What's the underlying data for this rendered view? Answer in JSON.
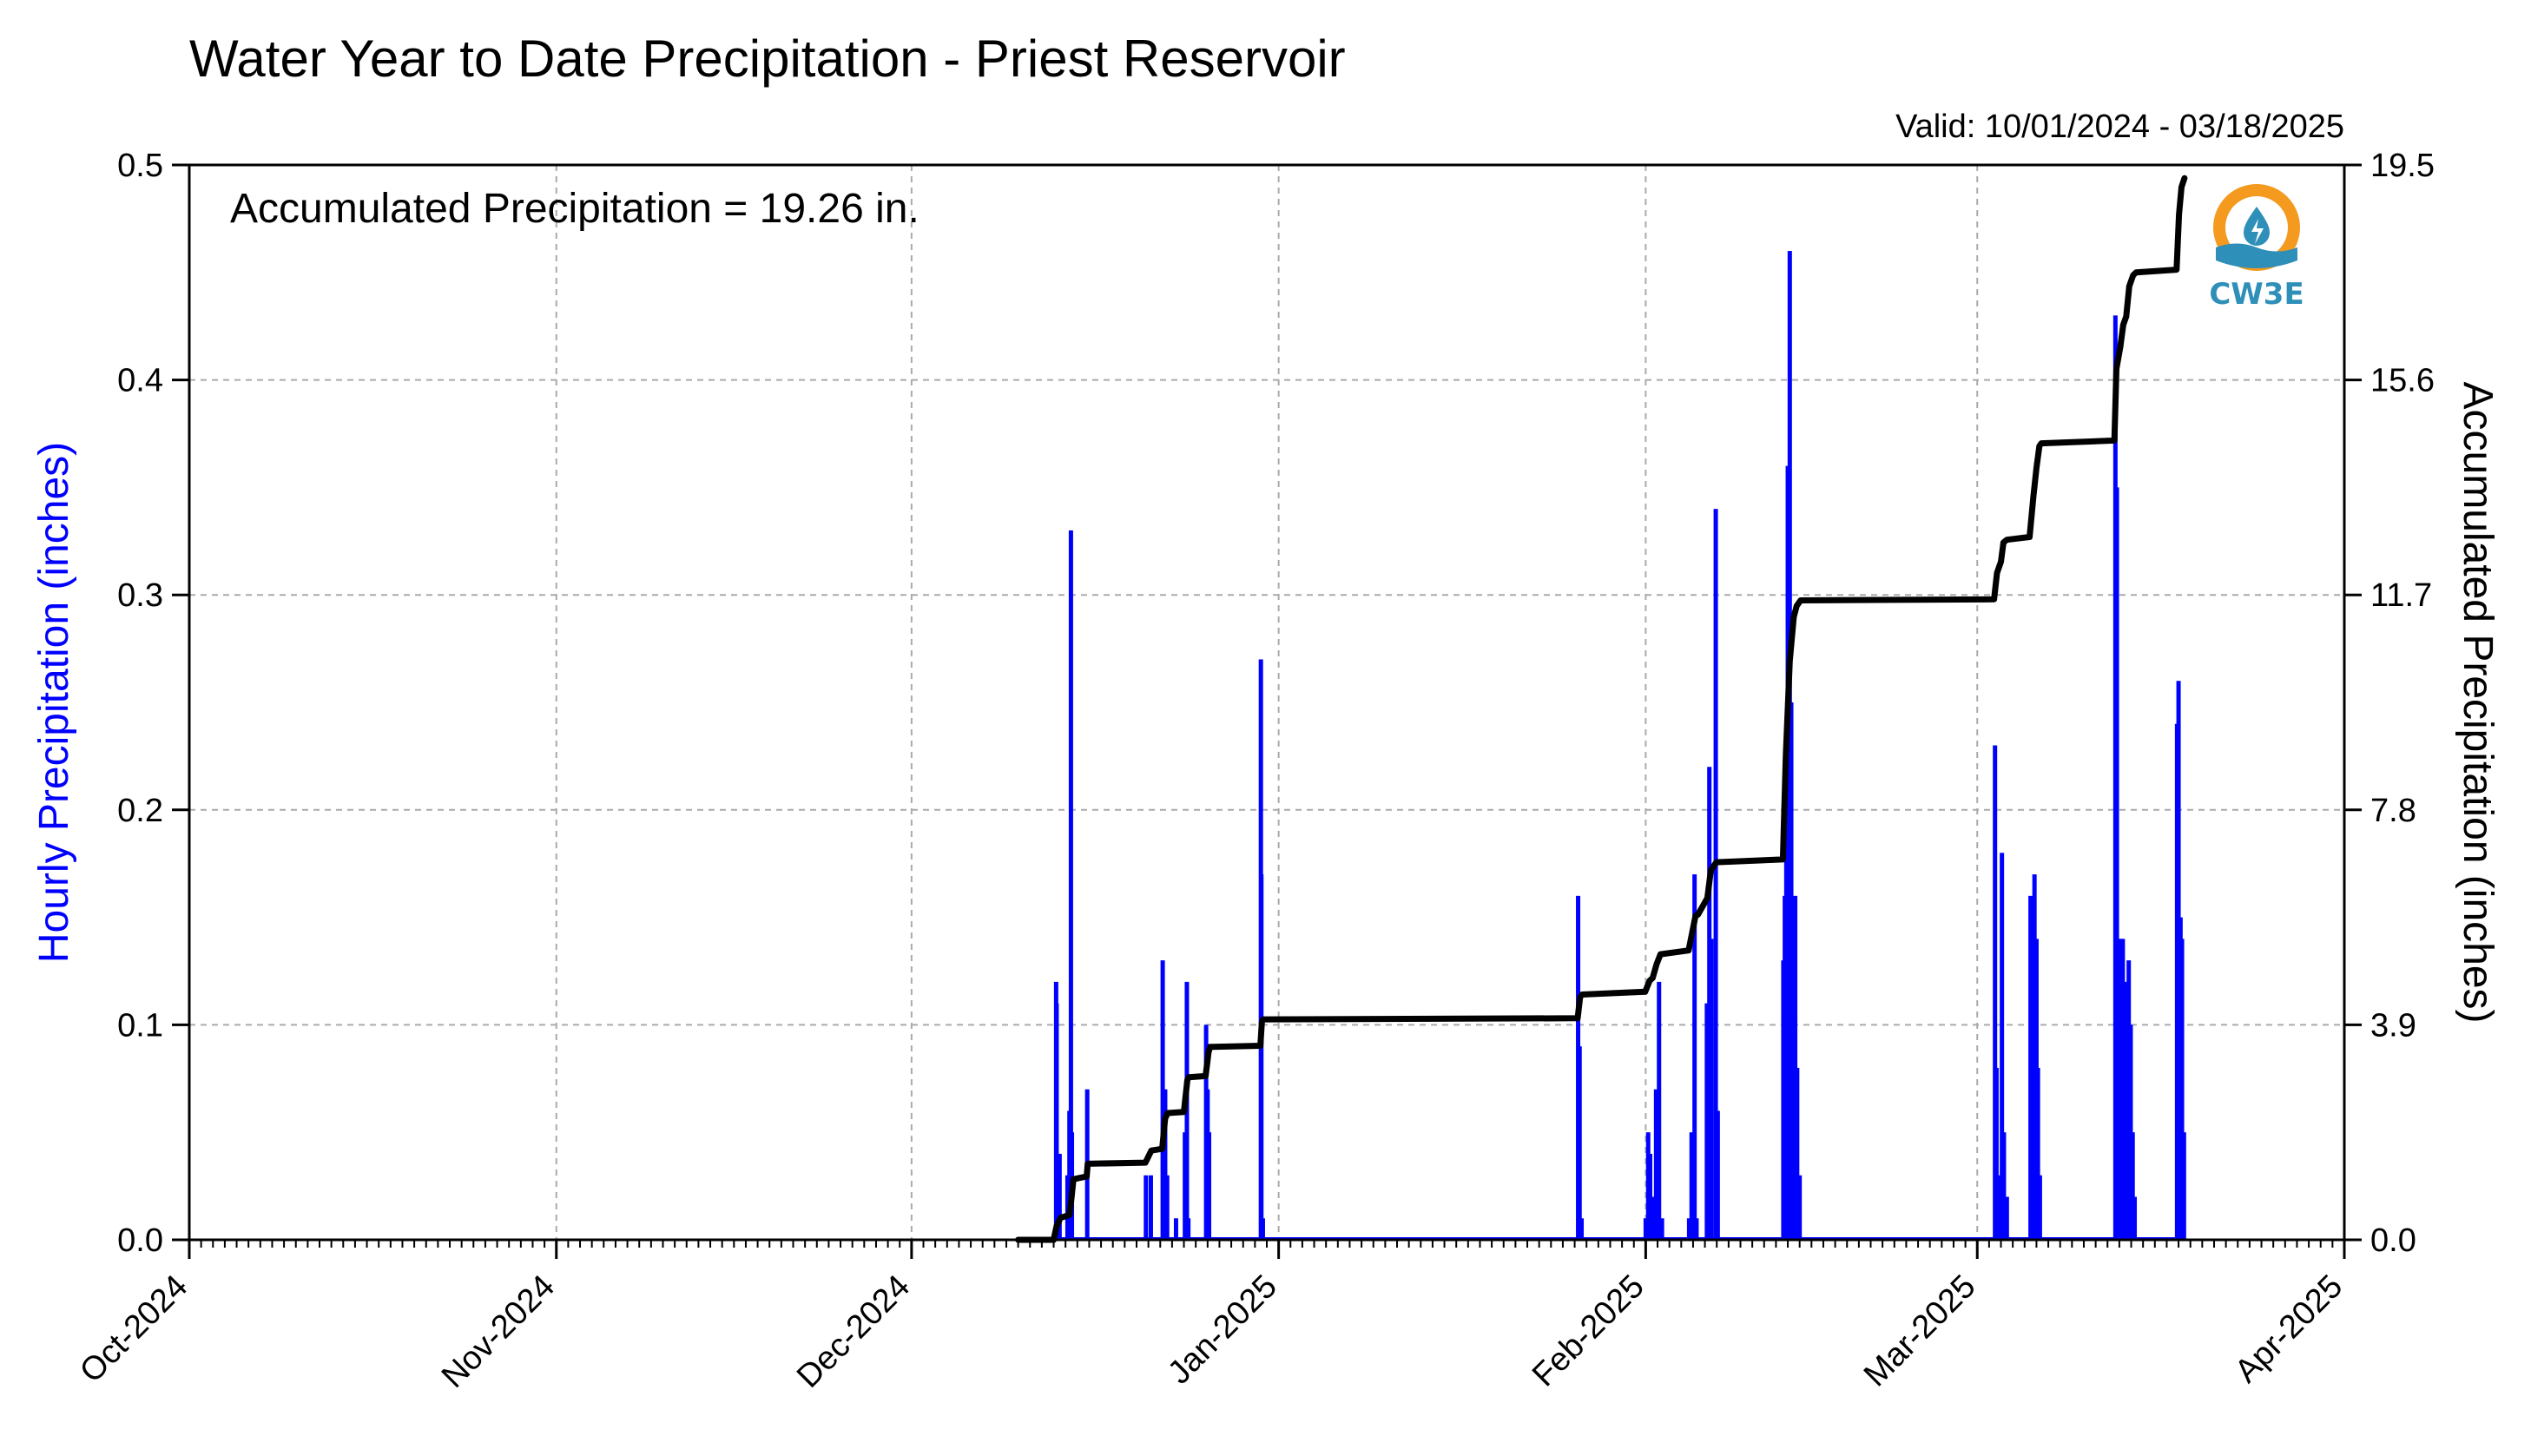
{
  "chart_data": {
    "type": "bar",
    "title": "Water Year to Date Precipitation - Priest Reservoir",
    "valid_text": "Valid: 10/01/2024 - 03/18/2025",
    "annotation": "Accumulated Precipitation = 19.26 in.",
    "logo_text": "CW3E",
    "x_range": [
      "2024-10-01",
      "2025-04-01"
    ],
    "x_tick_dates": [
      "2024-10-01",
      "2024-11-01",
      "2024-12-01",
      "2025-01-01",
      "2025-02-01",
      "2025-03-01",
      "2025-04-01"
    ],
    "x_tick_labels": [
      "Oct-2024",
      "Nov-2024",
      "Dec-2024",
      "Jan-2025",
      "Feb-2025",
      "Mar-2025",
      "Apr-2025"
    ],
    "y_left": {
      "label": "Hourly Precipitation (inches)",
      "range": [
        0,
        0.5
      ],
      "ticks": [
        0.0,
        0.1,
        0.2,
        0.3,
        0.4,
        0.5
      ],
      "tick_labels": [
        "0.0",
        "0.1",
        "0.2",
        "0.3",
        "0.4",
        "0.5"
      ],
      "color": "#0000ff"
    },
    "y_right": {
      "label": "Accumulated Precipitation (inches)",
      "range": [
        0,
        19.5
      ],
      "ticks": [
        0.0,
        3.9,
        7.8,
        11.7,
        15.6,
        19.5
      ],
      "tick_labels": [
        "0.0",
        "3.9",
        "7.8",
        "11.7",
        "15.6",
        "19.5"
      ],
      "color": "#000000"
    },
    "grid": true,
    "series": [
      {
        "name": "Hourly Precipitation",
        "axis": "left",
        "color": "#0000ff",
        "points": [
          [
            "2024-12-13T05:00",
            0.12
          ],
          [
            "2024-12-13T06:00",
            0.11
          ],
          [
            "2024-12-13T10:00",
            0.03
          ],
          [
            "2024-12-13T12:00",
            0.04
          ],
          [
            "2024-12-14T04:00",
            0.03
          ],
          [
            "2024-12-14T08:00",
            0.06
          ],
          [
            "2024-12-14T11:00",
            0.33
          ],
          [
            "2024-12-14T13:00",
            0.05
          ],
          [
            "2024-12-15T20:00",
            0.07
          ],
          [
            "2024-12-20T19:00",
            0.03
          ],
          [
            "2024-12-21T05:00",
            0.03
          ],
          [
            "2024-12-22T05:00",
            0.13
          ],
          [
            "2024-12-22T10:00",
            0.07
          ],
          [
            "2024-12-22T14:00",
            0.03
          ],
          [
            "2024-12-23T08:00",
            0.01
          ],
          [
            "2024-12-24T02:00",
            0.05
          ],
          [
            "2024-12-24T06:00",
            0.12
          ],
          [
            "2024-12-24T09:00",
            0.01
          ],
          [
            "2024-12-25T21:00",
            0.1
          ],
          [
            "2024-12-26T00:00",
            0.07
          ],
          [
            "2024-12-26T03:00",
            0.05
          ],
          [
            "2024-12-30T12:00",
            0.27
          ],
          [
            "2024-12-30T13:00",
            0.17
          ],
          [
            "2024-12-30T16:00",
            0.01
          ],
          [
            "2025-01-26T07:00",
            0.16
          ],
          [
            "2025-01-26T10:00",
            0.09
          ],
          [
            "2025-01-26T14:00",
            0.01
          ],
          [
            "2025-02-01T00:00",
            0.01
          ],
          [
            "2025-02-01T05:00",
            0.05
          ],
          [
            "2025-02-01T09:00",
            0.04
          ],
          [
            "2025-02-01T16:00",
            0.02
          ],
          [
            "2025-02-01T21:00",
            0.07
          ],
          [
            "2025-02-02T03:00",
            0.12
          ],
          [
            "2025-02-02T09:00",
            0.01
          ],
          [
            "2025-02-04T16:00",
            0.01
          ],
          [
            "2025-02-04T21:00",
            0.05
          ],
          [
            "2025-02-05T03:00",
            0.17
          ],
          [
            "2025-02-05T07:00",
            0.01
          ],
          [
            "2025-02-06T04:00",
            0.11
          ],
          [
            "2025-02-06T09:00",
            0.22
          ],
          [
            "2025-02-06T13:00",
            0.14
          ],
          [
            "2025-02-06T22:00",
            0.34
          ],
          [
            "2025-02-07T02:00",
            0.06
          ],
          [
            "2025-02-12T15:00",
            0.13
          ],
          [
            "2025-02-12T18:00",
            0.16
          ],
          [
            "2025-02-12T21:00",
            0.18
          ],
          [
            "2025-02-13T00:00",
            0.36
          ],
          [
            "2025-02-13T04:00",
            0.46
          ],
          [
            "2025-02-13T07:00",
            0.25
          ],
          [
            "2025-02-13T11:00",
            0.11
          ],
          [
            "2025-02-13T15:00",
            0.16
          ],
          [
            "2025-02-13T19:00",
            0.08
          ],
          [
            "2025-02-14T00:00",
            0.03
          ],
          [
            "2025-03-02T12:00",
            0.23
          ],
          [
            "2025-03-02T15:00",
            0.08
          ],
          [
            "2025-03-02T19:00",
            0.03
          ],
          [
            "2025-03-03T02:00",
            0.18
          ],
          [
            "2025-03-03T06:00",
            0.05
          ],
          [
            "2025-03-03T12:00",
            0.02
          ],
          [
            "2025-03-05T12:00",
            0.16
          ],
          [
            "2025-03-05T16:00",
            0.12
          ],
          [
            "2025-03-05T20:00",
            0.17
          ],
          [
            "2025-03-06T00:00",
            0.14
          ],
          [
            "2025-03-06T03:00",
            0.08
          ],
          [
            "2025-03-06T07:00",
            0.03
          ],
          [
            "2025-03-12T16:00",
            0.43
          ],
          [
            "2025-03-12T19:00",
            0.35
          ],
          [
            "2025-03-12T22:00",
            0.09
          ],
          [
            "2025-03-13T03:00",
            0.14
          ],
          [
            "2025-03-13T07:00",
            0.14
          ],
          [
            "2025-03-13T11:00",
            0.05
          ],
          [
            "2025-03-13T15:00",
            0.12
          ],
          [
            "2025-03-13T19:00",
            0.13
          ],
          [
            "2025-03-13T23:00",
            0.1
          ],
          [
            "2025-03-14T03:00",
            0.05
          ],
          [
            "2025-03-14T07:00",
            0.02
          ],
          [
            "2025-03-17T21:00",
            0.24
          ],
          [
            "2025-03-18T00:00",
            0.26
          ],
          [
            "2025-03-18T04:00",
            0.15
          ],
          [
            "2025-03-18T07:00",
            0.14
          ],
          [
            "2025-03-18T11:00",
            0.05
          ]
        ]
      },
      {
        "name": "Accumulated Precipitation",
        "axis": "right",
        "color": "#000000",
        "points": [
          [
            "2024-12-10T00:00",
            0.0
          ],
          [
            "2024-12-13T00:00",
            0.0
          ],
          [
            "2024-12-13T06:00",
            0.25
          ],
          [
            "2024-12-13T14:00",
            0.4
          ],
          [
            "2024-12-14T08:00",
            0.45
          ],
          [
            "2024-12-14T12:00",
            0.75
          ],
          [
            "2024-12-14T16:00",
            1.1
          ],
          [
            "2024-12-15T19:00",
            1.15
          ],
          [
            "2024-12-15T21:00",
            1.38
          ],
          [
            "2024-12-20T18:00",
            1.4
          ],
          [
            "2024-12-21T06:00",
            1.62
          ],
          [
            "2024-12-22T04:00",
            1.65
          ],
          [
            "2024-12-22T10:00",
            2.2
          ],
          [
            "2024-12-22T15:00",
            2.3
          ],
          [
            "2024-12-24T00:00",
            2.32
          ],
          [
            "2024-12-24T07:00",
            2.9
          ],
          [
            "2024-12-24T10:00",
            2.95
          ],
          [
            "2024-12-25T20:00",
            2.97
          ],
          [
            "2024-12-26T02:00",
            3.4
          ],
          [
            "2024-12-26T05:00",
            3.5
          ],
          [
            "2024-12-30T11:00",
            3.52
          ],
          [
            "2024-12-30T14:00",
            3.95
          ],
          [
            "2024-12-30T17:00",
            4.0
          ],
          [
            "2025-01-26T06:00",
            4.02
          ],
          [
            "2025-01-26T11:00",
            4.4
          ],
          [
            "2025-01-26T15:00",
            4.45
          ],
          [
            "2025-01-31T23:00",
            4.5
          ],
          [
            "2025-02-01T08:00",
            4.7
          ],
          [
            "2025-02-01T14:00",
            4.75
          ],
          [
            "2025-02-01T22:00",
            5.0
          ],
          [
            "2025-02-02T06:00",
            5.18
          ],
          [
            "2025-02-04T15:00",
            5.25
          ],
          [
            "2025-02-05T05:00",
            5.88
          ],
          [
            "2025-02-05T10:00",
            5.9
          ],
          [
            "2025-02-06T05:00",
            6.2
          ],
          [
            "2025-02-06T12:00",
            6.7
          ],
          [
            "2025-02-06T23:00",
            6.85
          ],
          [
            "2025-02-12T14:00",
            6.9
          ],
          [
            "2025-02-12T20:00",
            8.8
          ],
          [
            "2025-02-13T04:00",
            10.5
          ],
          [
            "2025-02-13T12:00",
            11.3
          ],
          [
            "2025-02-13T18:00",
            11.5
          ],
          [
            "2025-02-14T02:00",
            11.6
          ],
          [
            "2025-03-02T10:00",
            11.62
          ],
          [
            "2025-03-02T16:00",
            12.1
          ],
          [
            "2025-03-03T00:00",
            12.3
          ],
          [
            "2025-03-03T05:00",
            12.65
          ],
          [
            "2025-03-03T12:00",
            12.7
          ],
          [
            "2025-03-05T10:00",
            12.75
          ],
          [
            "2025-03-05T18:00",
            13.5
          ],
          [
            "2025-03-06T00:00",
            14.0
          ],
          [
            "2025-03-06T06:00",
            14.4
          ],
          [
            "2025-03-06T10:00",
            14.45
          ],
          [
            "2025-03-12T14:00",
            14.5
          ],
          [
            "2025-03-12T18:00",
            15.8
          ],
          [
            "2025-03-13T02:00",
            16.2
          ],
          [
            "2025-03-13T08:00",
            16.6
          ],
          [
            "2025-03-13T14:00",
            16.75
          ],
          [
            "2025-03-13T20:00",
            17.3
          ],
          [
            "2025-03-14T04:00",
            17.5
          ],
          [
            "2025-03-14T10:00",
            17.55
          ],
          [
            "2025-03-17T20:00",
            17.6
          ],
          [
            "2025-03-18T01:00",
            18.6
          ],
          [
            "2025-03-18T06:00",
            19.1
          ],
          [
            "2025-03-18T12:00",
            19.26
          ]
        ]
      }
    ]
  }
}
